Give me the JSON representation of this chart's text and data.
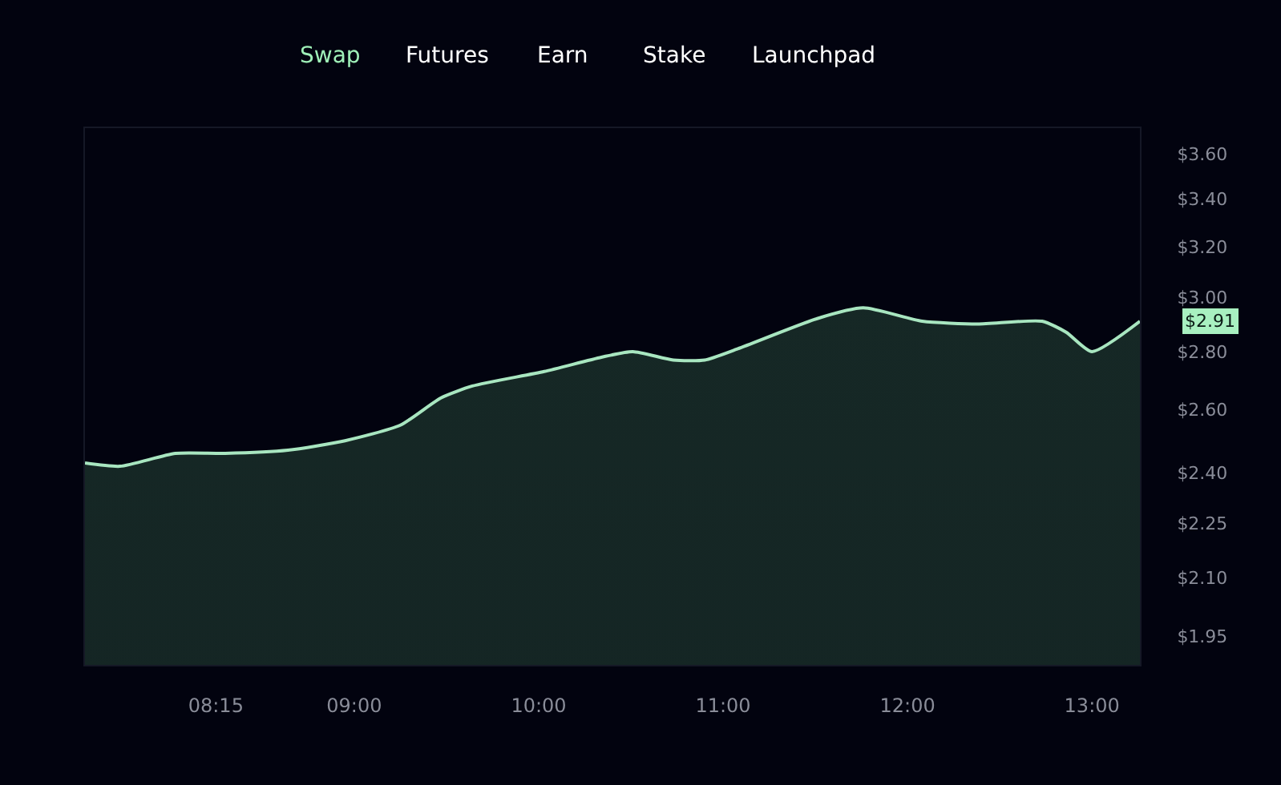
{
  "chart_data": {
    "type": "area",
    "log": true,
    "grid": false,
    "legend": false,
    "x": [
      7.54,
      7.73,
      8.03,
      8.3,
      8.64,
      8.95,
      9.25,
      9.47,
      9.64,
      10.03,
      10.34,
      10.51,
      10.73,
      10.9,
      11.08,
      11.51,
      11.76,
      12.08,
      12.38,
      12.73,
      12.86,
      13.0,
      13.26
    ],
    "series": [
      {
        "color": "#a8e6c0",
        "values": [
          2.43,
          2.42,
          2.46,
          2.46,
          2.47,
          2.5,
          2.55,
          2.64,
          2.68,
          2.73,
          2.78,
          2.8,
          2.77,
          2.77,
          2.81,
          2.92,
          2.96,
          2.91,
          2.9,
          2.91,
          2.87,
          2.8,
          2.91
        ]
      }
    ],
    "xlim": [
      7.54,
      13.26
    ],
    "ylim": [
      1.88,
      3.72
    ],
    "xticks": [
      {
        "value": 8.25,
        "label": "08:15"
      },
      {
        "value": 9,
        "label": "09:00"
      },
      {
        "value": 10,
        "label": "10:00"
      },
      {
        "value": 11,
        "label": "11:00"
      },
      {
        "value": 12,
        "label": "12:00"
      },
      {
        "value": 13,
        "label": "13:00"
      }
    ],
    "yticks": [
      {
        "value": 1.95,
        "label": "$1.95"
      },
      {
        "value": 2.1,
        "label": "$2.10"
      },
      {
        "value": 2.25,
        "label": "$2.25"
      },
      {
        "value": 2.4,
        "label": "$2.40"
      },
      {
        "value": 2.6,
        "label": "$2.60"
      },
      {
        "value": 2.8,
        "label": "$2.80"
      },
      {
        "value": 3.0,
        "label": "$3.00"
      },
      {
        "value": 3.2,
        "label": "$3.20"
      },
      {
        "value": 3.4,
        "label": "$3.40"
      },
      {
        "value": 3.6,
        "label": "$3.60"
      }
    ],
    "annotations": [
      "Swap",
      "Futures",
      "Earn",
      "Stake",
      "Launchpad",
      "$2.91"
    ]
  }
}
